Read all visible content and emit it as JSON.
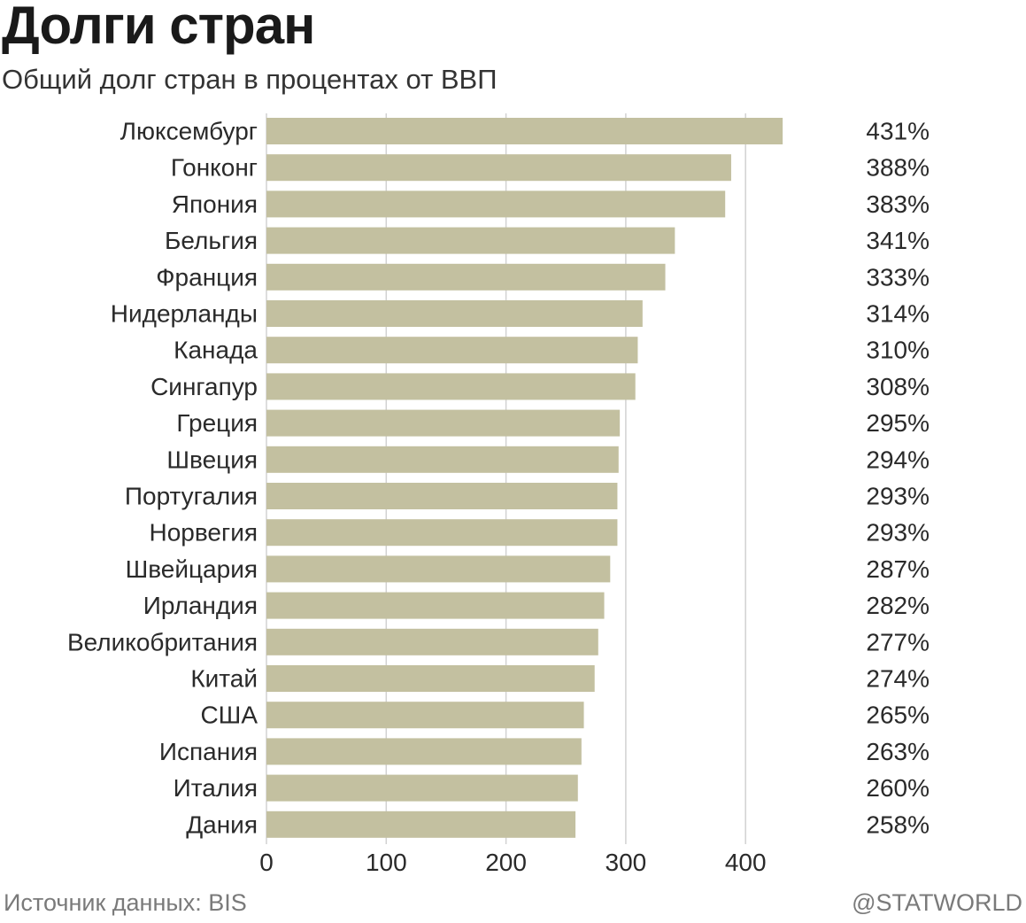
{
  "header": {
    "title": "Долги стран",
    "subtitle": "Общий долг стран в процентах от ВВП"
  },
  "footer": {
    "source": "Источник данных: BIS",
    "credit": "@STATWORLD"
  },
  "colors": {
    "bar": "#c3c0a0",
    "grid": "#d2d2d2",
    "text": "#2a2a2a"
  },
  "chart_data": {
    "type": "bar",
    "orientation": "horizontal",
    "title": "Долги стран",
    "subtitle": "Общий долг стран в процентах от ВВП",
    "xlim": [
      0,
      431
    ],
    "xticks": [
      0,
      100,
      200,
      300,
      400
    ],
    "grid": "vertical",
    "categories": [
      "Люксембург",
      "Гонконг",
      "Япония",
      "Бельгия",
      "Франция",
      "Нидерланды",
      "Канада",
      "Сингапур",
      "Греция",
      "Швеция",
      "Португалия",
      "Норвегия",
      "Швейцария",
      "Ирландия",
      "Великобритания",
      "Китай",
      "США",
      "Испания",
      "Италия",
      "Дания"
    ],
    "values": [
      431,
      388,
      383,
      341,
      333,
      314,
      310,
      308,
      295,
      294,
      293,
      293,
      287,
      282,
      277,
      274,
      265,
      263,
      260,
      258
    ],
    "value_labels": [
      "431%",
      "388%",
      "383%",
      "341%",
      "333%",
      "314%",
      "310%",
      "308%",
      "295%",
      "294%",
      "293%",
      "293%",
      "287%",
      "282%",
      "277%",
      "274%",
      "265%",
      "263%",
      "260%",
      "258%"
    ]
  }
}
